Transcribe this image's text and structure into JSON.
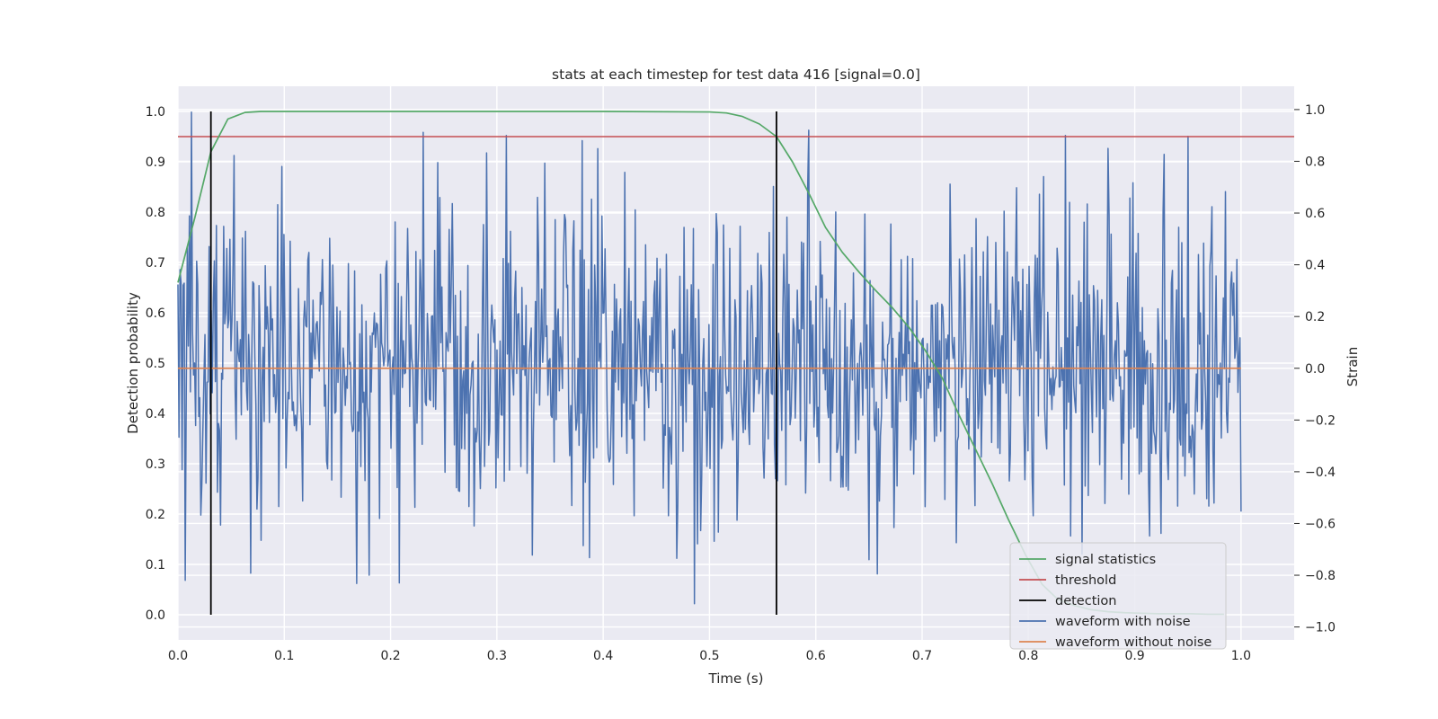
{
  "chart_data": {
    "type": "line",
    "title": "stats at each timestep for test data 416 [signal=0.0]",
    "xlabel": "Time (s)",
    "ylabel": "Detection probability",
    "y2label": "Strain",
    "xlim": [
      0.0,
      1.05
    ],
    "ylim": [
      -0.05,
      1.05
    ],
    "y2lim": [
      -1.05,
      1.09
    ],
    "xticks": [
      "0.0",
      "0.1",
      "0.2",
      "0.3",
      "0.4",
      "0.5",
      "0.6",
      "0.7",
      "0.8",
      "0.9",
      "1.0"
    ],
    "yticks": [
      "0.0",
      "0.1",
      "0.2",
      "0.3",
      "0.4",
      "0.5",
      "0.6",
      "0.7",
      "0.8",
      "0.9",
      "1.0"
    ],
    "y2ticks": [
      "−1.0",
      "−0.8",
      "−0.6",
      "−0.4",
      "−0.2",
      "0.0",
      "0.2",
      "0.4",
      "0.6",
      "0.8",
      "1.0"
    ],
    "grid": true,
    "legend_position": "lower-right",
    "series": [
      {
        "name": "signal statistics",
        "axis": "left",
        "color": "#55a868",
        "x": [
          0.0,
          0.016,
          0.031,
          0.047,
          0.063,
          0.078,
          0.1,
          0.2,
          0.3,
          0.4,
          0.5,
          0.516,
          0.531,
          0.547,
          0.563,
          0.578,
          0.594,
          0.609,
          0.625,
          0.641,
          0.656,
          0.672,
          0.688,
          0.703,
          0.719,
          0.734,
          0.75,
          0.766,
          0.781,
          0.797,
          0.813,
          0.828,
          0.844,
          0.859,
          0.875,
          0.891,
          0.906,
          0.922,
          0.938,
          0.953,
          0.969,
          0.984
        ],
        "y": [
          0.66,
          0.79,
          0.92,
          0.985,
          0.998,
          1.0,
          1.0,
          1.0,
          1.0,
          1.0,
          0.999,
          0.997,
          0.99,
          0.975,
          0.95,
          0.9,
          0.835,
          0.77,
          0.72,
          0.68,
          0.645,
          0.61,
          0.57,
          0.525,
          0.47,
          0.4,
          0.33,
          0.26,
          0.19,
          0.12,
          0.06,
          0.03,
          0.018,
          0.01,
          0.006,
          0.004,
          0.003,
          0.002,
          0.002,
          0.002,
          0.001,
          0.001
        ]
      },
      {
        "name": "threshold",
        "axis": "left",
        "color": "#c44e52",
        "x": [
          0.0,
          1.05
        ],
        "y": [
          0.95,
          0.95
        ]
      },
      {
        "name": "detection",
        "axis": "left",
        "color": "#000000",
        "type": "vlines",
        "x": [
          0.031,
          0.563
        ],
        "y_range": [
          0.0,
          1.0
        ]
      },
      {
        "name": "waveform with noise",
        "axis": "right",
        "color": "#4c72b0",
        "x_range": [
          0.0,
          1.0
        ],
        "n_samples": 1024,
        "noise_sigma": 0.3,
        "noise_seed": 416,
        "peaks": [
          {
            "x": 0.013,
            "y": 0.99
          },
          {
            "x": 0.007,
            "y": -0.82
          },
          {
            "x": 0.38,
            "y": 0.88
          },
          {
            "x": 0.486,
            "y": -0.91
          },
          {
            "x": 0.875,
            "y": 0.85
          },
          {
            "x": 0.18,
            "y": -0.8
          },
          {
            "x": 0.098,
            "y": 0.78
          },
          {
            "x": 0.65,
            "y": -0.74
          }
        ]
      },
      {
        "name": "waveform without noise",
        "axis": "right",
        "color": "#dd8452",
        "x": [
          0.0,
          1.0
        ],
        "y": [
          0.0,
          0.0
        ]
      }
    ]
  }
}
